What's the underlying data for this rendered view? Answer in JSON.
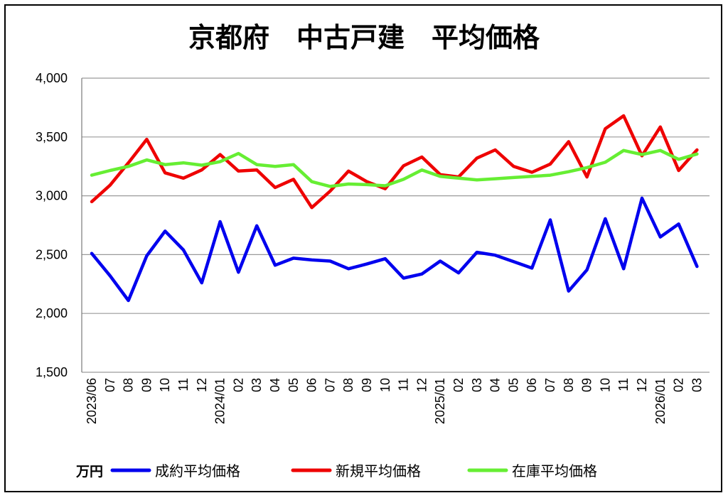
{
  "chart_data": {
    "type": "line",
    "title": "京都府　中古戸建　平均価格",
    "unit_label": "万円",
    "ylim": [
      1500,
      4000
    ],
    "yticks": [
      1500,
      2000,
      2500,
      3000,
      3500,
      4000
    ],
    "ytick_labels": [
      "1,500",
      "2,000",
      "2,500",
      "3,000",
      "3,500",
      "4,000"
    ],
    "x_labels": [
      "2023/06",
      "07",
      "08",
      "09",
      "10",
      "11",
      "12",
      "2024/01",
      "02",
      "03",
      "04",
      "05",
      "06",
      "07",
      "08",
      "09",
      "10",
      "11",
      "12",
      "2025/01",
      "02",
      "03",
      "04",
      "05",
      "06",
      "07",
      "08",
      "09",
      "10",
      "11",
      "12",
      "2026/01",
      "02",
      "03"
    ],
    "grid": "horizontal",
    "legend_position": "bottom",
    "series": [
      {
        "name": "成約平均価格",
        "color": "#0000ee",
        "values": [
          2510,
          2320,
          2110,
          2490,
          2700,
          2540,
          2260,
          2780,
          2350,
          2745,
          2410,
          2470,
          2455,
          2445,
          2380,
          2420,
          2465,
          2300,
          2335,
          2445,
          2345,
          2520,
          2495,
          2440,
          2385,
          2795,
          2190,
          2370,
          2805,
          2380,
          2980,
          2650,
          2760,
          2400
        ]
      },
      {
        "name": "新規平均価格",
        "color": "#ee0000",
        "values": [
          2950,
          3090,
          3280,
          3480,
          3195,
          3150,
          3220,
          3350,
          3210,
          3220,
          3070,
          3140,
          2900,
          3040,
          3210,
          3120,
          3060,
          3255,
          3330,
          3180,
          3160,
          3320,
          3390,
          3250,
          3200,
          3270,
          3460,
          3160,
          3570,
          3680,
          3340,
          3585,
          3215,
          3390
        ]
      },
      {
        "name": "在庫平均価格",
        "color": "#66ee33",
        "values": [
          3175,
          3215,
          3250,
          3305,
          3265,
          3280,
          3260,
          3290,
          3360,
          3265,
          3250,
          3265,
          3120,
          3080,
          3100,
          3095,
          3085,
          3140,
          3220,
          3165,
          3150,
          3135,
          3145,
          3155,
          3165,
          3175,
          3205,
          3240,
          3285,
          3385,
          3350,
          3385,
          3310,
          3355
        ]
      }
    ]
  }
}
